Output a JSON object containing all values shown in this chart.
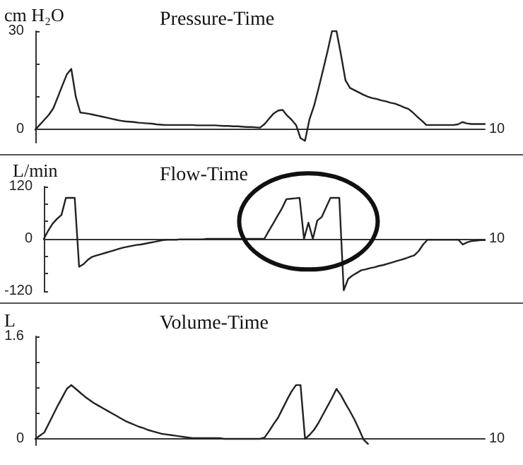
{
  "chart_data": [
    {
      "type": "line",
      "title": "Pressure-Time",
      "ylabel": "cm H₂O",
      "color": "#222222",
      "marker": "none",
      "line_style": "solid",
      "categories": [
        null,
        null,
        null,
        null,
        null,
        null,
        null,
        null,
        null,
        null,
        null,
        null,
        null,
        null,
        null,
        null,
        null,
        null,
        null,
        null,
        null,
        null,
        null,
        null,
        null,
        null,
        null,
        null,
        null,
        null,
        null,
        null,
        null,
        null,
        null,
        null,
        null,
        null,
        null,
        null,
        null,
        null,
        null,
        null,
        null,
        null,
        null,
        null,
        null,
        null,
        null,
        null,
        null,
        null,
        null,
        null,
        null,
        null,
        null,
        null,
        null,
        null,
        null,
        null,
        null,
        null,
        null,
        null,
        null,
        null,
        null,
        null,
        null,
        null,
        null,
        null,
        null,
        null,
        null,
        null,
        null,
        null,
        null,
        null,
        null,
        null,
        null,
        null,
        null,
        null,
        null,
        null,
        null,
        null,
        null,
        null,
        null,
        null,
        null,
        null,
        null
      ],
      "values": [
        0,
        1.5,
        3.0,
        4.5,
        6.5,
        9.9,
        13.4,
        16.8,
        18.5,
        10,
        5.2,
        5.0,
        4.8,
        4.5,
        4.2,
        3.9,
        3.6,
        3.3,
        3.0,
        2.7,
        2.5,
        2.4,
        2.3,
        2.1,
        2.0,
        1.9,
        1.8,
        1.6,
        1.5,
        1.4,
        1.4,
        1.4,
        1.4,
        1.4,
        1.4,
        1.4,
        1.3,
        1.3,
        1.3,
        1.3,
        1.3,
        1.2,
        1.1,
        1.1,
        1.0,
        1.0,
        0.9,
        0.8,
        0.8,
        0.7,
        0.6,
        1.7,
        3.3,
        4.9,
        5.8,
        6.0,
        4.3,
        3.0,
        1.4,
        -2.6,
        -3.4,
        3.2,
        7.2,
        12.5,
        18.1,
        23.8,
        30,
        30,
        22.8,
        15.0,
        12.7,
        12.0,
        11.3,
        10.6,
        10.0,
        9.6,
        9.3,
        8.9,
        8.6,
        8.2,
        7.9,
        7.4,
        6.8,
        6.3,
        5.2,
        3.9,
        2.7,
        1.4,
        1.4,
        1.4,
        1.4,
        1.4,
        1.4,
        1.4,
        1.6,
        2.3,
        1.9,
        1.7,
        1.7,
        1.7,
        1.7
      ],
      "annotations": [
        "10"
      ],
      "ylim": [
        -4,
        30
      ],
      "yticks": [
        0,
        {
          "value": 10,
          "label": null
        },
        {
          "value": 20,
          "label": null
        },
        30
      ]
    },
    {
      "type": "line",
      "title": "Flow-Time",
      "ylabel": "L/min",
      "color": "#222222",
      "marker": "none",
      "line_style": "solid",
      "categories": [
        null,
        null,
        null,
        null,
        null,
        null,
        null,
        null,
        null,
        null,
        null,
        null,
        null,
        null,
        null,
        null,
        null,
        null,
        null,
        null,
        null,
        null,
        null,
        null,
        null,
        null,
        null,
        null,
        null,
        null,
        null,
        null,
        null,
        null,
        null,
        null,
        null,
        null,
        null,
        null,
        null,
        null,
        null,
        null,
        null,
        null,
        null,
        null,
        null,
        null,
        null,
        null,
        null,
        null,
        null,
        null,
        null,
        null,
        null,
        null,
        null,
        null,
        null,
        null,
        null,
        null,
        null,
        null,
        null,
        null,
        null,
        null,
        null,
        null,
        null,
        null,
        null,
        null,
        null,
        null,
        null,
        null,
        null,
        null,
        null,
        null,
        null,
        null,
        null,
        null,
        null,
        null,
        null,
        null,
        null,
        null,
        null,
        null,
        null,
        null,
        null
      ],
      "values": [
        0,
        19,
        35,
        46,
        55,
        94,
        94,
        94,
        -64,
        -58,
        -48,
        -41,
        -38,
        -35,
        -32,
        -29,
        -26,
        -23,
        -20,
        -18,
        -16,
        -14,
        -13,
        -11,
        -9,
        -7,
        -5,
        -3,
        -2,
        -2,
        -2,
        -1,
        -1,
        -1,
        -1,
        -1,
        -1,
        0,
        0,
        0,
        0,
        0,
        0,
        0,
        0,
        0,
        0,
        0,
        0,
        0,
        0,
        18,
        35,
        53,
        70,
        91,
        92,
        93,
        94,
        0,
        37,
        0,
        42,
        50,
        72,
        94,
        94,
        94,
        -118,
        -92,
        -84,
        -78,
        -72,
        -70,
        -67,
        -65,
        -62,
        -60,
        -57,
        -54,
        -51,
        -48,
        -45,
        -41,
        -38,
        -28,
        -13,
        -2,
        -2,
        -2,
        -2,
        -2,
        -2,
        -2,
        -2,
        -13,
        -8,
        -5,
        -4,
        -3,
        -3
      ],
      "annotations": [
        "10"
      ],
      "ylim": [
        -120,
        120
      ],
      "yticks": [
        -120,
        {
          "value": -80,
          "label": null
        },
        {
          "value": -40,
          "label": null
        },
        0,
        {
          "value": 40,
          "label": null
        },
        {
          "value": 80,
          "label": null
        },
        120
      ]
    },
    {
      "type": "line",
      "title": "Volume-Time",
      "ylabel": "L",
      "color": "#222222",
      "marker": "none",
      "line_style": "solid",
      "categories": [
        null,
        null,
        null,
        null,
        null,
        null,
        null,
        null,
        null,
        null,
        null,
        null,
        null,
        null,
        null,
        null,
        null,
        null,
        null,
        null,
        null,
        null,
        null,
        null,
        null,
        null,
        null,
        null,
        null,
        null,
        null,
        null,
        null,
        null,
        null,
        null,
        null,
        null,
        null,
        null,
        null,
        null,
        null,
        null,
        null,
        null,
        null,
        null,
        null,
        null,
        null,
        null,
        null,
        null,
        null,
        null,
        null,
        null,
        null,
        null,
        null,
        null,
        null,
        null,
        null,
        null,
        null,
        null,
        null,
        null,
        null,
        null,
        null,
        null,
        null,
        null,
        null,
        null,
        null,
        null,
        null,
        null,
        null,
        null,
        null,
        null,
        null,
        null,
        null,
        null,
        null,
        null,
        null,
        null,
        null,
        null,
        null,
        null,
        null,
        null,
        null
      ],
      "values": [
        0,
        0.05,
        0.1,
        0.24,
        0.38,
        0.52,
        0.65,
        0.78,
        0.84,
        0.78,
        0.72,
        0.66,
        0.61,
        0.56,
        0.52,
        0.48,
        0.44,
        0.4,
        0.36,
        0.32,
        0.28,
        0.25,
        0.22,
        0.19,
        0.17,
        0.14,
        0.12,
        0.1,
        0.08,
        0.07,
        0.06,
        0.05,
        0.04,
        0.03,
        0.02,
        0.01,
        0.01,
        0.01,
        0.01,
        0.01,
        0.01,
        0.01,
        0,
        0,
        0,
        0,
        0,
        0,
        0,
        0,
        0,
        0.02,
        0.12,
        0.23,
        0.33,
        0.47,
        0.61,
        0.74,
        0.84,
        0.84,
        0,
        0.06,
        0.14,
        0.25,
        0.38,
        0.51,
        0.64,
        0.78,
        0.68,
        0.55,
        0.43,
        0.3,
        0.15,
        -0.01,
        -0.08,
        null,
        null,
        null,
        null,
        null,
        null,
        null,
        null,
        null,
        null,
        null,
        null,
        null,
        null,
        null,
        null,
        null,
        null,
        null,
        null,
        null,
        null,
        null,
        null,
        null,
        null
      ],
      "annotations": [
        "10"
      ],
      "ylim": [
        -0.1,
        1.6
      ],
      "yticks": [
        0,
        {
          "value": 0.4,
          "label": null
        },
        {
          "value": 0.8,
          "label": null
        },
        {
          "value": 1.2,
          "label": null
        },
        1.6
      ]
    }
  ]
}
